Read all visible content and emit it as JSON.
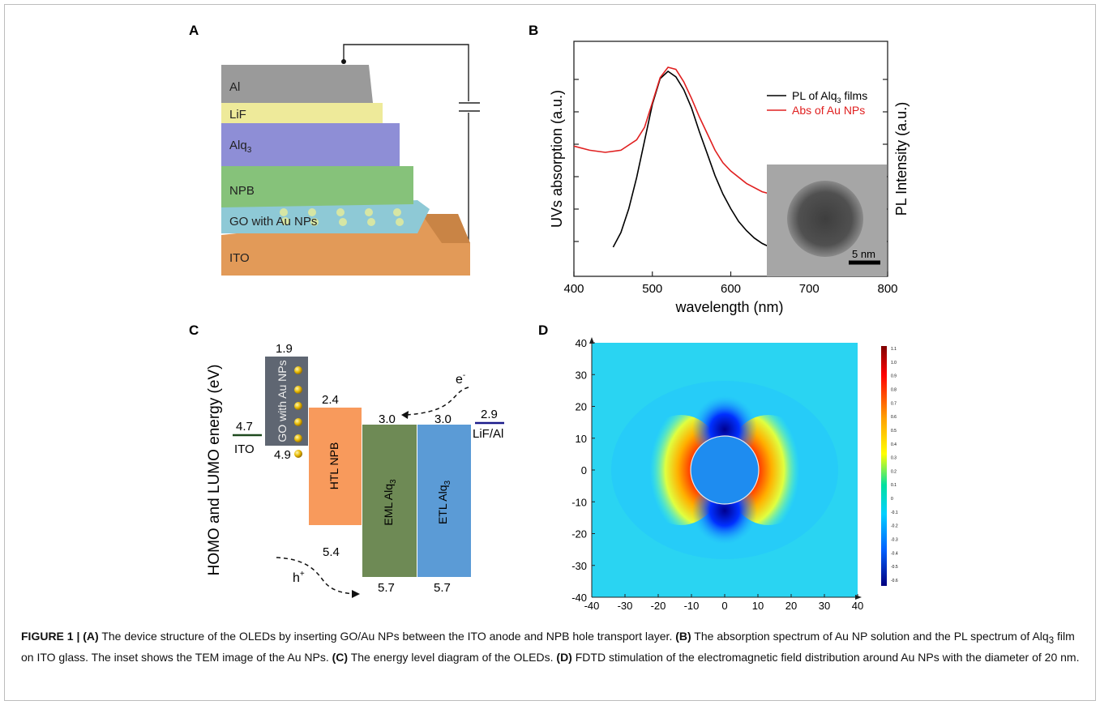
{
  "panel_a": {
    "label": "A",
    "layers": [
      "Al",
      "LiF",
      "Alq",
      "NPB",
      "GO with Au NPs",
      "ITO"
    ],
    "alq_subscript": "3"
  },
  "panel_b": {
    "label": "B",
    "inset_scale": "5 nm",
    "chart_data": {
      "type": "line",
      "xlabel": "wavelength (nm)",
      "ylabel_left": "UVs absorption (a.u.)",
      "ylabel_right": "PL Intensity (a.u.)",
      "xlim": [
        400,
        800
      ],
      "xticks": [
        "400",
        "500",
        "600",
        "700",
        "800"
      ],
      "legend": "top-right",
      "series": [
        {
          "name": "PL of Alq3 films",
          "color": "#000000",
          "x": [
            450,
            460,
            470,
            480,
            490,
            500,
            510,
            520,
            530,
            540,
            550,
            560,
            570,
            580,
            590,
            600,
            610,
            620,
            630,
            640,
            650
          ],
          "y": [
            0.04,
            0.12,
            0.25,
            0.42,
            0.62,
            0.82,
            0.96,
            1.0,
            0.97,
            0.9,
            0.8,
            0.67,
            0.55,
            0.43,
            0.33,
            0.25,
            0.18,
            0.13,
            0.09,
            0.06,
            0.04
          ]
        },
        {
          "name": "Abs of Au NPs",
          "color": "#e02020",
          "x": [
            400,
            420,
            440,
            460,
            480,
            490,
            500,
            510,
            520,
            530,
            540,
            550,
            560,
            570,
            580,
            590,
            600,
            620,
            640,
            650
          ],
          "y": [
            0.62,
            0.6,
            0.59,
            0.6,
            0.65,
            0.71,
            0.83,
            0.95,
            1.0,
            0.99,
            0.93,
            0.85,
            0.76,
            0.68,
            0.6,
            0.54,
            0.5,
            0.44,
            0.4,
            0.39
          ]
        }
      ]
    },
    "legend_pl_prefix": "PL of Alq",
    "legend_pl_sub": "3",
    "legend_pl_suffix": " films",
    "legend_abs": "Abs of Au NPs"
  },
  "panel_c": {
    "label": "C",
    "ylabel": "HOMO and LUMO energy (eV)",
    "blocks": [
      {
        "name": "GO with Au NPs",
        "top": "1.9",
        "bottom": "4.9",
        "color": "#5f6672"
      },
      {
        "name": "HTL NPB",
        "top": "2.4",
        "bottom": "5.4",
        "color": "#f89a5c"
      },
      {
        "name": "EML Alq",
        "top": "3.0",
        "bottom": "5.7",
        "color": "#6e8a55"
      },
      {
        "name": "ETL Alq",
        "top": "3.0",
        "bottom": "5.7",
        "color": "#5b9bd6"
      }
    ],
    "ito_value": "4.7",
    "ito_label": "ITO",
    "lif_value": "2.9",
    "lif_label": "LiF/Al",
    "electron": "e",
    "electron_sup": "-",
    "hole": "h",
    "hole_sup": "+",
    "alq_subscript": "3"
  },
  "panel_d": {
    "label": "D",
    "xticks": [
      "-40",
      "-30",
      "-20",
      "-10",
      "0",
      "10",
      "20",
      "30",
      "40"
    ],
    "yticks": [
      "40",
      "30",
      "20",
      "10",
      "0",
      "-10",
      "-20",
      "-30",
      "-40"
    ],
    "colorbar_ticks": [
      "1.1",
      "1.0",
      "0.9",
      "0.8",
      "0.7",
      "0.6",
      "0.5",
      "0.4",
      "0.3",
      "0.2",
      "0.1",
      "0",
      "-0.1",
      "-0.2",
      "-0.3",
      "-0.4",
      "-0.5",
      "-0.6"
    ]
  },
  "caption": {
    "figure_label": "FIGURE 1 |",
    "a_tag": "(A)",
    "a_text": " The device structure of the OLEDs by inserting GO/Au NPs between the ITO anode and NPB hole transport layer. ",
    "b_tag": "(B)",
    "b_text1": " The absorption spectrum of Au NP solution and the PL spectrum of Alq",
    "b_sub": "3",
    "b_text2": " film on ITO glass. The inset shows the TEM image of the Au NPs. ",
    "c_tag": "(C)",
    "c_text": " The energy level diagram of the OLEDs. ",
    "d_tag": "(D)",
    "d_text": " FDTD stimulation of the electromagnetic field distribution around Au NPs with the diameter of 20 nm."
  }
}
